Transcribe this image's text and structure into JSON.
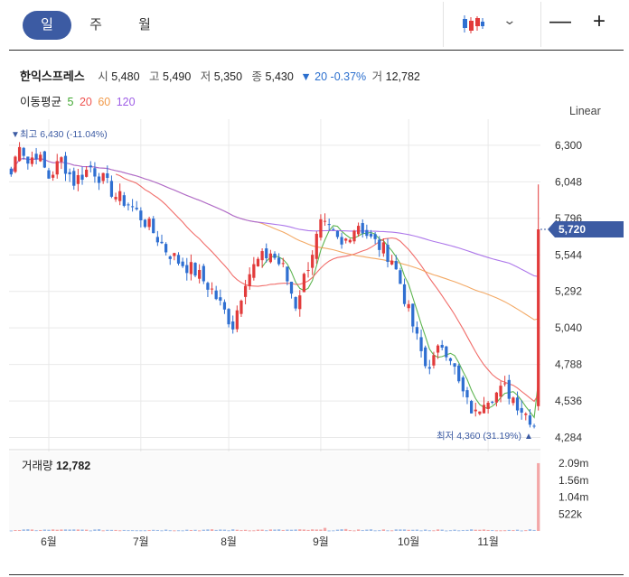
{
  "tabs": [
    {
      "label": "일",
      "active": true
    },
    {
      "label": "주",
      "active": false
    },
    {
      "label": "월",
      "active": false
    }
  ],
  "toolbar": {
    "chart_type_icon": "candlestick-icon",
    "dropdown_icon": "chevron-down-icon",
    "zoom_out": "—",
    "zoom_in": "+"
  },
  "stock": {
    "name": "한익스프레스",
    "open_label": "시",
    "open": "5,480",
    "high_label": "고",
    "high": "5,490",
    "low_label": "저",
    "low": "5,350",
    "close_label": "종",
    "close": "5,430",
    "change": "▼ 20 -0.37%",
    "volume_label": "거",
    "volume": "12,782"
  },
  "ma": {
    "label": "이동평균",
    "periods": [
      "5",
      "20",
      "60",
      "120"
    ],
    "colors": [
      "#42a832",
      "#ef5350",
      "#f19a4a",
      "#9f5fe6"
    ]
  },
  "scale_button": "Linear",
  "colors": {
    "up": "#e23b3b",
    "down": "#2f6fd1",
    "price_tag": "#3c5ba3",
    "grid": "#e9e9e9"
  },
  "chart_data": {
    "type": "candlestick",
    "title": "한익스프레스",
    "y_ticks": [
      "6,300",
      "6,048",
      "5,796",
      "5,544",
      "5,292",
      "5,040",
      "4,788",
      "4,536",
      "4,284"
    ],
    "y_tick_values": [
      6300,
      6048,
      5796,
      5544,
      5292,
      5040,
      4788,
      4536,
      4284
    ],
    "ylim": [
      4200,
      6480
    ],
    "x_ticks": [
      "6월",
      "7월",
      "8월",
      "9월",
      "10월",
      "11월"
    ],
    "x_tick_positions": [
      9,
      31,
      52,
      74,
      95,
      114
    ],
    "n_candles": 127,
    "current_price_tag": "5,720",
    "max_label": "최고 6,430 (-11.04%)",
    "min_label": "최저 4,360 (31.19%)",
    "max_marker": "▼",
    "min_marker": "▲",
    "volume": {
      "title": "거래량",
      "value": "12,782",
      "y_ticks": [
        "2.09m",
        "1.56m",
        "1.04m",
        "522k"
      ],
      "y_tick_values": [
        2090000,
        1560000,
        1040000,
        522000
      ],
      "ylim": [
        0,
        2450000
      ]
    },
    "keypoints": [
      [
        0,
        6100
      ],
      [
        2,
        6330
      ],
      [
        4,
        6180
      ],
      [
        6,
        6250
      ],
      [
        9,
        6080
      ],
      [
        12,
        6200
      ],
      [
        15,
        6050
      ],
      [
        19,
        6150
      ],
      [
        22,
        6060
      ],
      [
        25,
        5950
      ],
      [
        28,
        5900
      ],
      [
        30,
        5840
      ],
      [
        33,
        5740
      ],
      [
        37,
        5580
      ],
      [
        40,
        5500
      ],
      [
        44,
        5430
      ],
      [
        48,
        5300
      ],
      [
        51,
        5150
      ],
      [
        53,
        5060
      ],
      [
        56,
        5380
      ],
      [
        59,
        5500
      ],
      [
        62,
        5560
      ],
      [
        65,
        5450
      ],
      [
        68,
        5200
      ],
      [
        71,
        5480
      ],
      [
        74,
        5750
      ],
      [
        77,
        5680
      ],
      [
        79,
        5600
      ],
      [
        81,
        5700
      ],
      [
        83,
        5760
      ],
      [
        86,
        5650
      ],
      [
        89,
        5580
      ],
      [
        91,
        5520
      ],
      [
        93,
        5350
      ],
      [
        95,
        5150
      ],
      [
        97,
        4960
      ],
      [
        99,
        4780
      ],
      [
        101,
        4820
      ],
      [
        103,
        4930
      ],
      [
        105,
        4850
      ],
      [
        107,
        4650
      ],
      [
        109,
        4520
      ],
      [
        111,
        4440
      ],
      [
        113,
        4560
      ],
      [
        116,
        4590
      ],
      [
        118,
        4620
      ],
      [
        120,
        4560
      ],
      [
        122,
        4480
      ],
      [
        124,
        4420
      ],
      [
        125,
        4380
      ],
      [
        126,
        5720
      ]
    ],
    "ma_series": [
      {
        "period": "5",
        "color": "#42a832",
        "smooth": 5,
        "start": 60
      },
      {
        "period": "20",
        "color": "#ef5350",
        "smooth": 20,
        "start": 25
      },
      {
        "period": "60",
        "color": "#f19a4a",
        "smooth": 60,
        "start": 0
      },
      {
        "period": "120",
        "color": "#9f5fe6",
        "smooth": 120,
        "start": 0
      }
    ]
  }
}
